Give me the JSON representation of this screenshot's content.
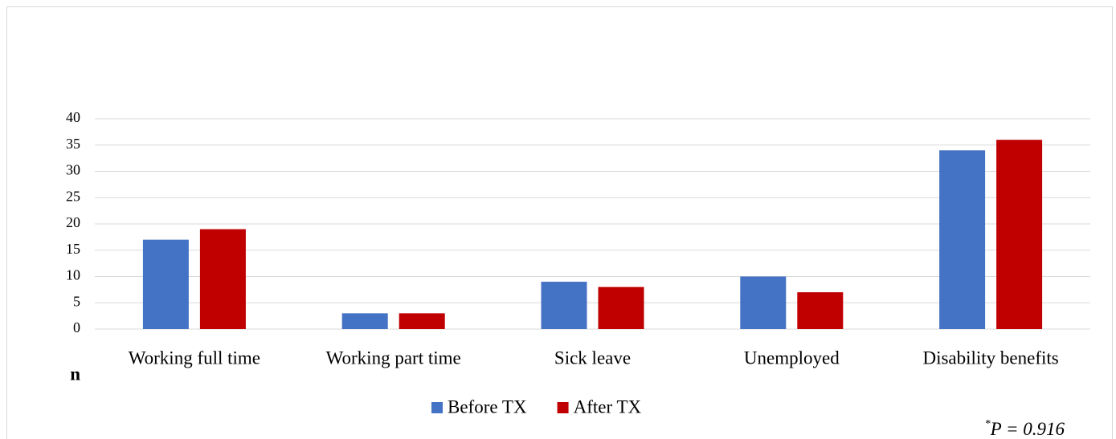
{
  "chart_data": {
    "type": "bar",
    "categories": [
      "Working full time",
      "Working part time",
      "Sick leave",
      "Unemployed",
      "Disability benefits"
    ],
    "series": [
      {
        "name": "Before TX",
        "color": "#4472c4",
        "values": [
          17,
          3,
          9,
          10,
          34
        ]
      },
      {
        "name": "After TX",
        "color": "#c00000",
        "values": [
          19,
          3,
          8,
          7,
          36
        ]
      }
    ],
    "ylabel": "n",
    "ylim": [
      0,
      40
    ],
    "yticks": [
      0,
      5,
      10,
      15,
      20,
      25,
      30,
      35,
      40
    ],
    "grid": true,
    "legend": "bottom",
    "annotation_mark": "*",
    "annotation": "P = 0.916"
  }
}
